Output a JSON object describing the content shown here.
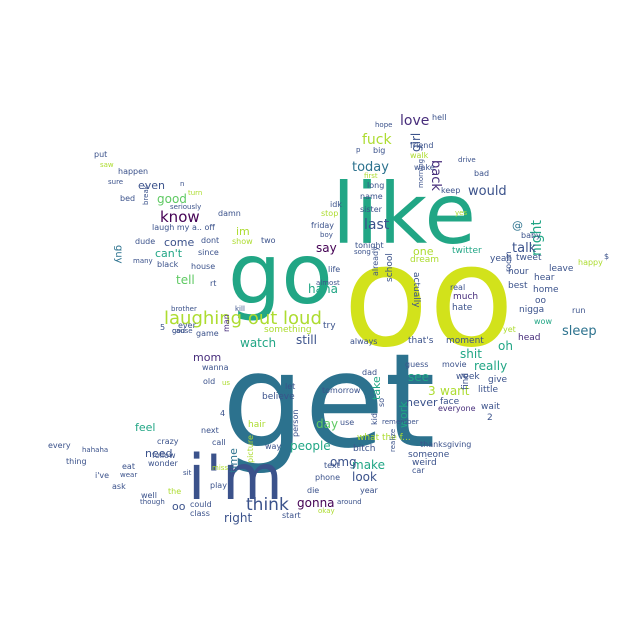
{
  "palette": {
    "yellow": "#d2e21b",
    "teal": "#21a685",
    "blue": "#2c728e",
    "navy": "#3b528b",
    "purple": "#472d7b",
    "indigo": "#440154",
    "green": "#5ec962",
    "lime": "#addc30"
  },
  "words": [
    {
      "text": "get",
      "color": "blue"
    },
    {
      "text": "oo",
      "color": "yellow"
    },
    {
      "text": "like",
      "color": "teal"
    },
    {
      "text": "go",
      "color": "teal"
    },
    {
      "text": "i'm",
      "color": "navy"
    },
    {
      "text": "laughing out loud",
      "color": "lime"
    },
    {
      "text": "know",
      "color": "indigo"
    },
    {
      "text": "think",
      "color": "navy"
    },
    {
      "text": "love",
      "color": "purple"
    },
    {
      "text": "fuck",
      "color": "lime"
    },
    {
      "text": "today",
      "color": "blue"
    },
    {
      "text": "last",
      "color": "navy"
    },
    {
      "text": "back",
      "color": "purple"
    },
    {
      "text": "girl",
      "color": "navy"
    },
    {
      "text": "would",
      "color": "navy"
    },
    {
      "text": "night",
      "color": "teal"
    },
    {
      "text": "talk",
      "color": "navy"
    },
    {
      "text": "sleep",
      "color": "blue"
    },
    {
      "text": "good",
      "color": "green"
    },
    {
      "text": "even",
      "color": "navy"
    },
    {
      "text": "come",
      "color": "navy"
    },
    {
      "text": "can't",
      "color": "teal"
    },
    {
      "text": "tell",
      "color": "green"
    },
    {
      "text": "guy",
      "color": "blue"
    },
    {
      "text": "im",
      "color": "lime"
    },
    {
      "text": "say",
      "color": "indigo"
    },
    {
      "text": "haha",
      "color": "teal"
    },
    {
      "text": "still",
      "color": "navy"
    },
    {
      "text": "watch",
      "color": "teal"
    },
    {
      "text": "mom",
      "color": "purple"
    },
    {
      "text": "feel",
      "color": "teal"
    },
    {
      "text": "need",
      "color": "navy"
    },
    {
      "text": "shit",
      "color": "teal"
    },
    {
      "text": "really",
      "color": "teal"
    },
    {
      "text": "oh",
      "color": "teal"
    },
    {
      "text": "see",
      "color": "teal"
    },
    {
      "text": "want",
      "color": "lime"
    },
    {
      "text": "3",
      "color": "lime"
    },
    {
      "text": "never",
      "color": "navy"
    },
    {
      "text": "day",
      "color": "green"
    },
    {
      "text": "take",
      "color": "teal"
    },
    {
      "text": "people",
      "color": "teal"
    },
    {
      "text": "work",
      "color": "teal"
    },
    {
      "text": "make",
      "color": "teal"
    },
    {
      "text": "look",
      "color": "navy"
    },
    {
      "text": "omg",
      "color": "navy"
    },
    {
      "text": "gonna",
      "color": "indigo"
    },
    {
      "text": "right",
      "color": "navy"
    },
    {
      "text": "time",
      "color": "blue"
    },
    {
      "text": "oo",
      "color": "navy"
    },
    {
      "text": "one",
      "color": "lime"
    },
    {
      "text": "twitter",
      "color": "teal"
    },
    {
      "text": "@",
      "color": "blue"
    },
    {
      "text": "yeah",
      "color": "navy"
    },
    {
      "text": "hour",
      "color": "navy"
    },
    {
      "text": "hear",
      "color": "navy"
    },
    {
      "text": "leave",
      "color": "navy"
    },
    {
      "text": "best",
      "color": "navy"
    },
    {
      "text": "home",
      "color": "navy"
    },
    {
      "text": "oo",
      "color": "navy"
    },
    {
      "text": "nigga",
      "color": "navy"
    },
    {
      "text": "head",
      "color": "purple"
    },
    {
      "text": "yet",
      "color": "lime"
    },
    {
      "text": "wow",
      "color": "teal"
    },
    {
      "text": "baby",
      "color": "navy"
    },
    {
      "text": "tweet",
      "color": "navy"
    },
    {
      "text": "happy",
      "color": "lime"
    },
    {
      "text": "run",
      "color": "navy"
    },
    {
      "text": "$",
      "color": "navy"
    },
    {
      "text": "room",
      "color": "navy"
    },
    {
      "text": "real",
      "color": "navy"
    },
    {
      "text": "much",
      "color": "purple"
    },
    {
      "text": "hate",
      "color": "navy"
    },
    {
      "text": "find",
      "color": "navy"
    },
    {
      "text": "that's",
      "color": "navy"
    },
    {
      "text": "moment",
      "color": "navy"
    },
    {
      "text": "week",
      "color": "navy"
    },
    {
      "text": "give",
      "color": "navy"
    },
    {
      "text": "little",
      "color": "navy"
    },
    {
      "text": "wait",
      "color": "navy"
    },
    {
      "text": "2",
      "color": "navy"
    },
    {
      "text": "face",
      "color": "navy"
    },
    {
      "text": "everyone",
      "color": "purple"
    },
    {
      "text": "guess",
      "color": "navy"
    },
    {
      "text": "movie",
      "color": "navy"
    },
    {
      "text": "dream",
      "color": "lime"
    },
    {
      "text": "actually",
      "color": "navy"
    },
    {
      "text": "school",
      "color": "navy"
    },
    {
      "text": "already",
      "color": "navy"
    },
    {
      "text": "always",
      "color": "navy"
    },
    {
      "text": "dad",
      "color": "navy"
    },
    {
      "text": "tomorrow",
      "color": "navy"
    },
    {
      "text": "believe",
      "color": "navy"
    },
    {
      "text": "let",
      "color": "navy"
    },
    {
      "text": "use",
      "color": "navy"
    },
    {
      "text": "so",
      "color": "navy"
    },
    {
      "text": "kid",
      "color": "navy"
    },
    {
      "text": "what the f...",
      "color": "lime"
    },
    {
      "text": "bitch",
      "color": "navy"
    },
    {
      "text": "thanksgiving",
      "color": "navy"
    },
    {
      "text": "someone",
      "color": "navy"
    },
    {
      "text": "weird",
      "color": "navy"
    },
    {
      "text": "car",
      "color": "navy"
    },
    {
      "text": "remember",
      "color": "navy"
    },
    {
      "text": "realize",
      "color": "navy"
    },
    {
      "text": "text",
      "color": "navy"
    },
    {
      "text": "phone",
      "color": "navy"
    },
    {
      "text": "year",
      "color": "navy"
    },
    {
      "text": "die",
      "color": "navy"
    },
    {
      "text": "start",
      "color": "navy"
    },
    {
      "text": "okay",
      "color": "lime"
    },
    {
      "text": "around",
      "color": "navy"
    },
    {
      "text": "person",
      "color": "navy"
    },
    {
      "text": "hair",
      "color": "lime"
    },
    {
      "text": "way",
      "color": "navy"
    },
    {
      "text": "call",
      "color": "navy"
    },
    {
      "text": "next",
      "color": "navy"
    },
    {
      "text": "4",
      "color": "navy"
    },
    {
      "text": "picture",
      "color": "lime"
    },
    {
      "text": "miss",
      "color": "lime"
    },
    {
      "text": "crazy",
      "color": "navy"
    },
    {
      "text": "wonder",
      "color": "navy"
    },
    {
      "text": "follow",
      "color": "navy"
    },
    {
      "text": "eat",
      "color": "navy"
    },
    {
      "text": "sit",
      "color": "navy"
    },
    {
      "text": "play",
      "color": "navy"
    },
    {
      "text": "could",
      "color": "navy"
    },
    {
      "text": "class",
      "color": "navy"
    },
    {
      "text": "the",
      "color": "lime"
    },
    {
      "text": "well",
      "color": "navy"
    },
    {
      "text": "ask",
      "color": "navy"
    },
    {
      "text": "wear",
      "color": "navy"
    },
    {
      "text": "though",
      "color": "navy"
    },
    {
      "text": "i've",
      "color": "navy"
    },
    {
      "text": "every",
      "color": "navy"
    },
    {
      "text": "thing",
      "color": "navy"
    },
    {
      "text": "hahaha",
      "color": "navy"
    },
    {
      "text": "old",
      "color": "navy"
    },
    {
      "text": "us",
      "color": "lime"
    },
    {
      "text": "wanna",
      "color": "navy"
    },
    {
      "text": "man",
      "color": "purple"
    },
    {
      "text": "god",
      "color": "navy"
    },
    {
      "text": "brother",
      "color": "navy"
    },
    {
      "text": "cause",
      "color": "navy"
    },
    {
      "text": "ever",
      "color": "navy"
    },
    {
      "text": "5",
      "color": "navy"
    },
    {
      "text": "game",
      "color": "navy"
    },
    {
      "text": "kill",
      "color": "navy"
    },
    {
      "text": "something",
      "color": "lime"
    },
    {
      "text": "try",
      "color": "navy"
    },
    {
      "text": "almost",
      "color": "navy"
    },
    {
      "text": "life",
      "color": "navy"
    },
    {
      "text": "rt",
      "color": "navy"
    },
    {
      "text": "house",
      "color": "navy"
    },
    {
      "text": "black",
      "color": "navy"
    },
    {
      "text": "many",
      "color": "navy"
    },
    {
      "text": "dude",
      "color": "navy"
    },
    {
      "text": "since",
      "color": "navy"
    },
    {
      "text": "dont",
      "color": "navy"
    },
    {
      "text": "show",
      "color": "lime"
    },
    {
      "text": "two",
      "color": "navy"
    },
    {
      "text": "laugh my a.. off",
      "color": "navy"
    },
    {
      "text": "break",
      "color": "navy"
    },
    {
      "text": "bed",
      "color": "navy"
    },
    {
      "text": "happen",
      "color": "navy"
    },
    {
      "text": "sure",
      "color": "navy"
    },
    {
      "text": "saw",
      "color": "lime"
    },
    {
      "text": "put",
      "color": "navy"
    },
    {
      "text": "damn",
      "color": "navy"
    },
    {
      "text": "seriously",
      "color": "navy"
    },
    {
      "text": "turn",
      "color": "lime"
    },
    {
      "text": "n",
      "color": "navy"
    },
    {
      "text": "friday",
      "color": "navy"
    },
    {
      "text": "stop",
      "color": "lime"
    },
    {
      "text": "idk",
      "color": "navy"
    },
    {
      "text": "boy",
      "color": "navy"
    },
    {
      "text": "song",
      "color": "navy"
    },
    {
      "text": "tonight",
      "color": "navy"
    },
    {
      "text": "sister",
      "color": "navy"
    },
    {
      "text": "name",
      "color": "navy"
    },
    {
      "text": "long",
      "color": "navy"
    },
    {
      "text": "first",
      "color": "lime"
    },
    {
      "text": "big",
      "color": "navy"
    },
    {
      "text": "p",
      "color": "navy"
    },
    {
      "text": "hope",
      "color": "navy"
    },
    {
      "text": "hell",
      "color": "navy"
    },
    {
      "text": "friend",
      "color": "navy"
    },
    {
      "text": "walk",
      "color": "lime"
    },
    {
      "text": "wake",
      "color": "navy"
    },
    {
      "text": "drive",
      "color": "navy"
    },
    {
      "text": "bad",
      "color": "navy"
    },
    {
      "text": "keep",
      "color": "navy"
    },
    {
      "text": "yes",
      "color": "lime"
    },
    {
      "text": "morning",
      "color": "navy"
    }
  ]
}
